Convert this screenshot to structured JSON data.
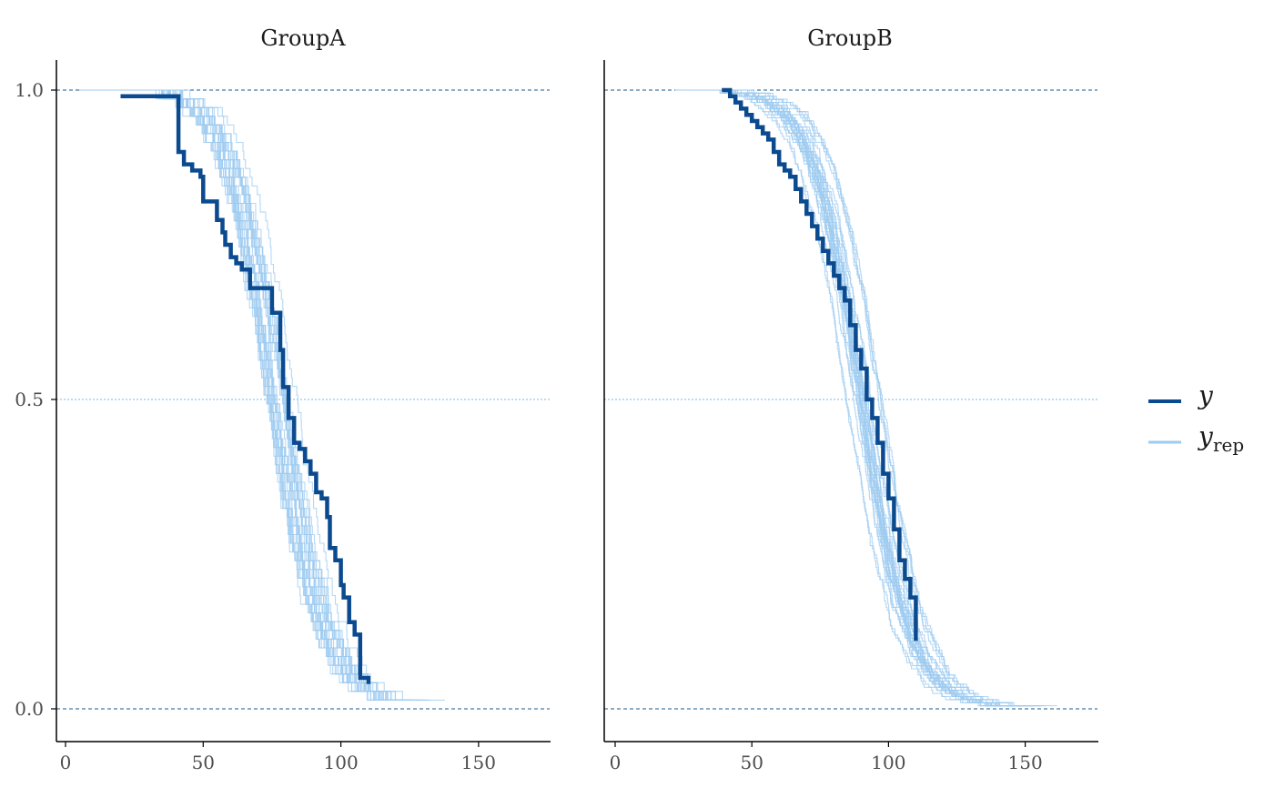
{
  "chart_data": {
    "type": "line",
    "subtype": "posterior-predictive-survival-curves",
    "xlim": [
      0,
      175
    ],
    "ylim": [
      0,
      1.0
    ],
    "x_ticks": [
      0,
      50,
      100,
      150
    ],
    "y_ticks": [
      0.0,
      0.5,
      1.0
    ],
    "y_tick_labels": [
      "0.0",
      "0.5",
      "1.0"
    ],
    "reference_lines": [
      {
        "y": 1.0,
        "style": "dashed",
        "color": "#1a5a8c"
      },
      {
        "y": 0.5,
        "style": "dotted",
        "color": "#7ab7e6"
      },
      {
        "y": 0.0,
        "style": "dashed",
        "color": "#1a5a8c"
      }
    ],
    "legend": {
      "placement": "right",
      "entries": [
        {
          "key": "y",
          "label": "y",
          "subscript": "",
          "color": "#0b4a8f"
        },
        {
          "key": "yrep",
          "label": "y",
          "subscript": "rep",
          "color": "#9ecbf0"
        }
      ]
    },
    "colors": {
      "y": "#0b4a8f",
      "yrep": "#9ecbf0"
    },
    "n_replicates": 30,
    "panels": [
      {
        "title": "GroupA",
        "y": {
          "x": [
            20,
            40,
            41,
            43,
            46,
            49,
            50,
            52,
            55,
            57,
            58,
            60,
            62,
            64,
            67,
            72,
            75,
            78,
            79,
            81,
            83,
            85,
            87,
            89,
            91,
            93,
            95,
            96,
            98,
            100,
            101,
            103,
            105,
            107,
            110
          ],
          "s": [
            0.99,
            0.99,
            0.9,
            0.88,
            0.87,
            0.86,
            0.82,
            0.82,
            0.79,
            0.77,
            0.75,
            0.73,
            0.72,
            0.71,
            0.68,
            0.68,
            0.64,
            0.58,
            0.52,
            0.47,
            0.43,
            0.42,
            0.4,
            0.38,
            0.35,
            0.34,
            0.31,
            0.26,
            0.24,
            0.2,
            0.18,
            0.14,
            0.12,
            0.05,
            0.04
          ]
        },
        "yrep": {
          "x_start": 5,
          "x_end": 151,
          "median": 76,
          "scale": 9,
          "n": 70
        }
      },
      {
        "title": "GroupB",
        "y": {
          "x": [
            39,
            42,
            44,
            46,
            48,
            50,
            52,
            54,
            56,
            58,
            60,
            62,
            64,
            66,
            68,
            70,
            72,
            74,
            76,
            78,
            80,
            82,
            84,
            86,
            88,
            90,
            92,
            94,
            96,
            98,
            100,
            102,
            104,
            106,
            108,
            110
          ],
          "s": [
            1.0,
            0.99,
            0.98,
            0.97,
            0.96,
            0.95,
            0.94,
            0.93,
            0.92,
            0.9,
            0.88,
            0.87,
            0.86,
            0.84,
            0.82,
            0.8,
            0.78,
            0.76,
            0.74,
            0.72,
            0.7,
            0.68,
            0.66,
            0.62,
            0.58,
            0.55,
            0.5,
            0.47,
            0.43,
            0.38,
            0.34,
            0.29,
            0.24,
            0.21,
            0.18,
            0.11
          ]
        },
        "yrep": {
          "x_start": 22,
          "x_end": 172,
          "median": 90,
          "scale": 9,
          "n": 200
        }
      }
    ]
  }
}
